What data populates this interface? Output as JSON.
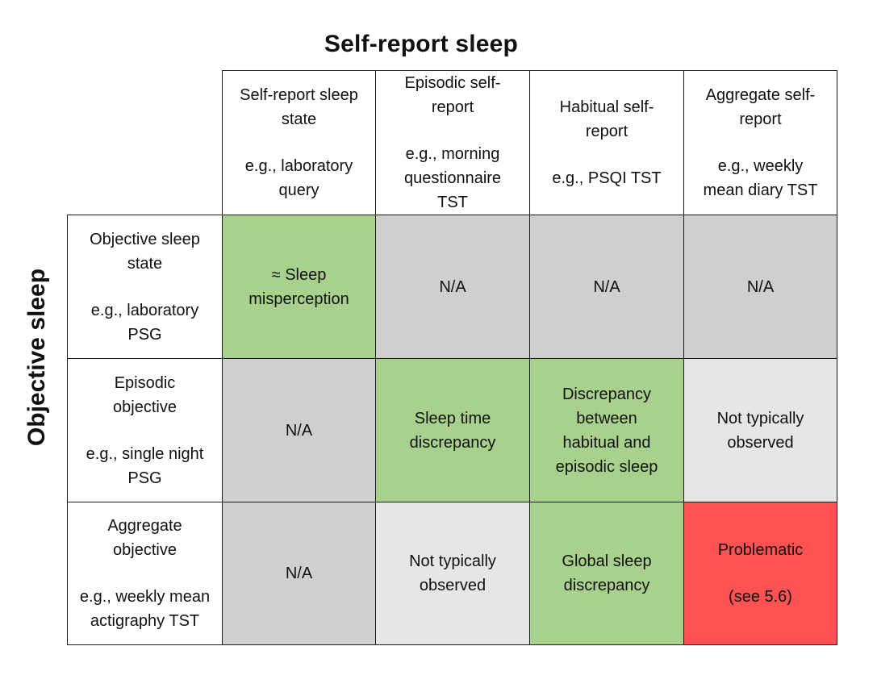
{
  "titles": {
    "top": "Self-report sleep",
    "side": "Objective sleep"
  },
  "columns": [
    {
      "label": "Self-report sleep state",
      "example": "e.g., laboratory query"
    },
    {
      "label": "Episodic self-report",
      "example": "e.g., morning questionnaire TST"
    },
    {
      "label": "Habitual self-report",
      "example": "e.g., PSQI TST"
    },
    {
      "label": "Aggregate self-report",
      "example": "e.g., weekly mean diary TST"
    }
  ],
  "rows": [
    {
      "label": "Objective sleep state",
      "example": "e.g., laboratory PSG"
    },
    {
      "label": "Episodic objective",
      "example": "e.g., single night PSG"
    },
    {
      "label": "Aggregate objective",
      "example": "e.g., weekly mean actigraphy TST"
    }
  ],
  "cells": [
    [
      {
        "text": "≈ Sleep misperception",
        "fill": "#a9d18e"
      },
      {
        "text": "N/A",
        "fill": "#d0cece"
      },
      {
        "text": "N/A",
        "fill": "#d0cece"
      },
      {
        "text": "N/A",
        "fill": "#d0cece"
      }
    ],
    [
      {
        "text": "N/A",
        "fill": "#d0cece"
      },
      {
        "text": "Sleep time discrepancy",
        "fill": "#a9d18e"
      },
      {
        "text": "Discrepancy between habitual and episodic sleep",
        "fill": "#a9d18e"
      },
      {
        "text": "Not typically observed",
        "fill": "#e7e6e6"
      }
    ],
    [
      {
        "text": "N/A",
        "fill": "#d0cece"
      },
      {
        "text": "Not typically observed",
        "fill": "#e7e6e6"
      },
      {
        "text": "Global sleep discrepancy",
        "fill": "#a9d18e"
      },
      {
        "text": "Problematic",
        "note": "(see 5.6)",
        "fill": "#ff5252"
      }
    ]
  ]
}
